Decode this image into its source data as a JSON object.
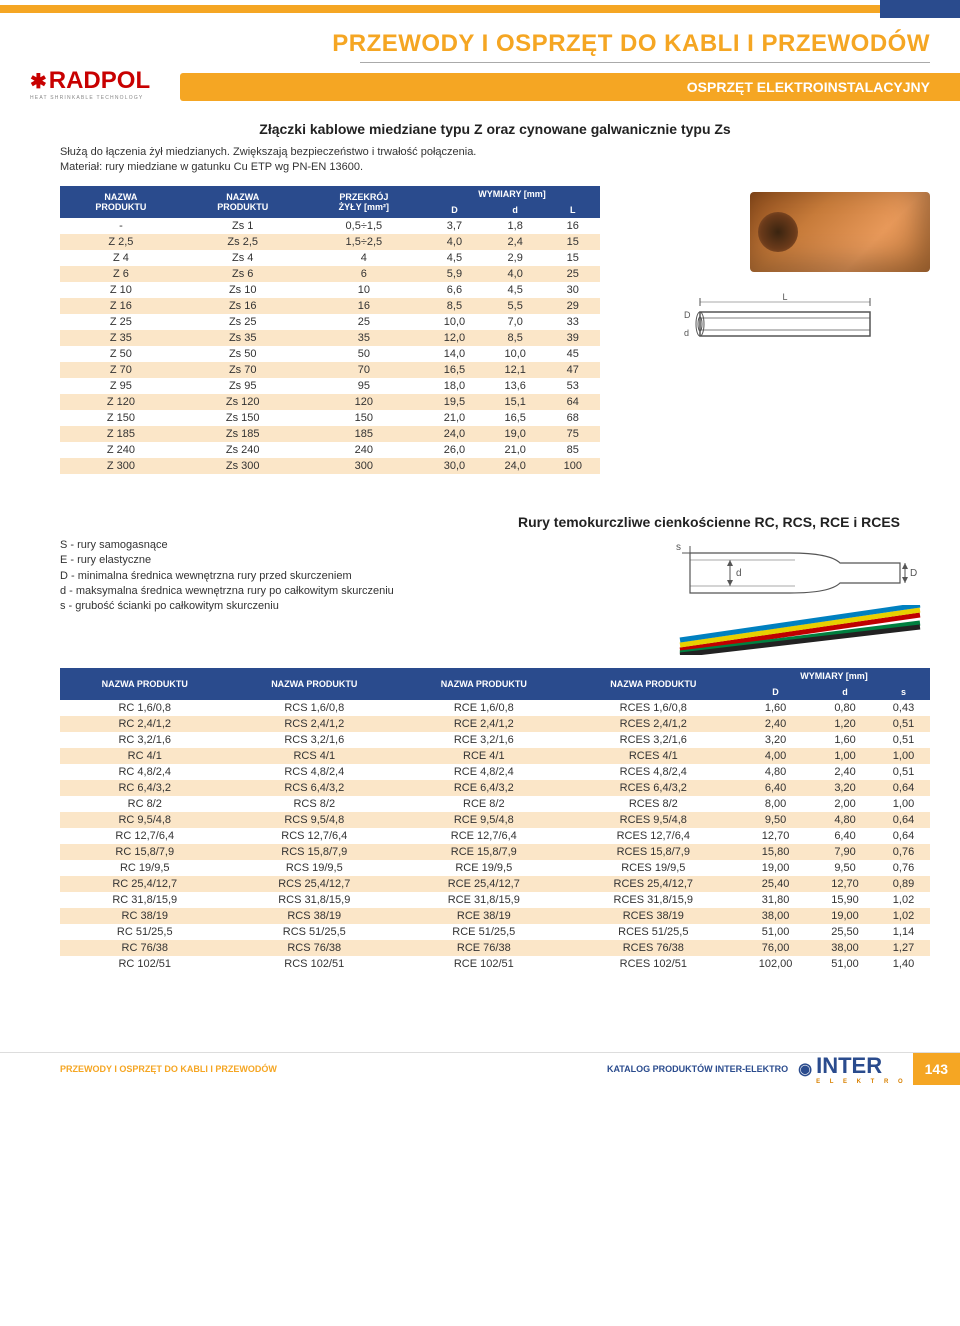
{
  "colors": {
    "brand_orange": "#f5a623",
    "brand_navy": "#2a4b8d",
    "row_alt_bg": "#fbe6c8",
    "text": "#333333",
    "logo_red": "#c80000"
  },
  "typography": {
    "body_font": "Arial",
    "title_size_pt": 18,
    "body_size_pt": 9,
    "table_size_pt": 8
  },
  "header": {
    "logo_text": "RADPOL",
    "logo_sub": "HEAT SHRINKABLE TECHNOLOGY",
    "page_title": "PRZEWODY I OSPRZĘT DO KABLI I PRZEWODÓW",
    "subtitle": "OSPRZĘT ELEKTROINSTALACYJNY"
  },
  "section1": {
    "title": "Złączki kablowe miedziane typu Z oraz cynowane galwanicznie typu Zs",
    "intro_line1": "Służą do łączenia żył miedzianych. Zwiększają bezpieczeństwo i trwałość połączenia.",
    "intro_line2": "Materiał: rury miedziane w gatunku Cu ETP wg PN-EN 13600.",
    "table": {
      "type": "table",
      "header_bg": "#2a4b8d",
      "header_fg": "#ffffff",
      "row_alt_bg": "#fbe6c8",
      "columns": [
        {
          "label1": "NAZWA",
          "label2": "PRODUKTU"
        },
        {
          "label1": "NAZWA",
          "label2": "PRODUKTU"
        },
        {
          "label1": "PRZEKRÓJ",
          "label2": "ŻYŁY [mm²]"
        },
        {
          "label1": "WYMIARY [mm]",
          "sub": [
            "D",
            "d",
            "L"
          ]
        }
      ],
      "rows": [
        [
          "-",
          "Zs 1",
          "0,5÷1,5",
          "3,7",
          "1,8",
          "16"
        ],
        [
          "Z 2,5",
          "Zs 2,5",
          "1,5÷2,5",
          "4,0",
          "2,4",
          "15"
        ],
        [
          "Z 4",
          "Zs 4",
          "4",
          "4,5",
          "2,9",
          "15"
        ],
        [
          "Z 6",
          "Zs 6",
          "6",
          "5,9",
          "4,0",
          "25"
        ],
        [
          "Z 10",
          "Zs 10",
          "10",
          "6,6",
          "4,5",
          "30"
        ],
        [
          "Z 16",
          "Zs 16",
          "16",
          "8,5",
          "5,5",
          "29"
        ],
        [
          "Z 25",
          "Zs 25",
          "25",
          "10,0",
          "7,0",
          "33"
        ],
        [
          "Z 35",
          "Zs 35",
          "35",
          "12,0",
          "8,5",
          "39"
        ],
        [
          "Z 50",
          "Zs 50",
          "50",
          "14,0",
          "10,0",
          "45"
        ],
        [
          "Z 70",
          "Zs 70",
          "70",
          "16,5",
          "12,1",
          "47"
        ],
        [
          "Z 95",
          "Zs 95",
          "95",
          "18,0",
          "13,6",
          "53"
        ],
        [
          "Z 120",
          "Zs 120",
          "120",
          "19,5",
          "15,1",
          "64"
        ],
        [
          "Z 150",
          "Zs 150",
          "150",
          "21,0",
          "16,5",
          "68"
        ],
        [
          "Z 185",
          "Zs 185",
          "185",
          "24,0",
          "19,0",
          "75"
        ],
        [
          "Z 240",
          "Zs 240",
          "240",
          "26,0",
          "21,0",
          "85"
        ],
        [
          "Z 300",
          "Zs 300",
          "300",
          "30,0",
          "24,0",
          "100"
        ]
      ]
    },
    "diagram": {
      "labels": [
        "L",
        "D",
        "d"
      ],
      "stroke": "#555555"
    }
  },
  "section2": {
    "title": "Rury temokurczliwe cienkościenne RC, RCS, RCE i RCES",
    "notes": [
      "S - rury samogasnące",
      "E - rury elastyczne",
      "D - minimalna średnica wewnętrzna rury przed skurczeniem",
      "d - maksymalna średnica wewnętrzna rury po całkowitym skurczeniu",
      "s - grubość ścianki po całkowitym skurczeniu"
    ],
    "diagram": {
      "labels": [
        "s",
        "d",
        "D"
      ],
      "stroke": "#555555"
    },
    "table": {
      "type": "table",
      "header_bg": "#2a4b8d",
      "header_fg": "#ffffff",
      "row_alt_bg": "#fbe6c8",
      "columns_top": [
        "NAZWA PRODUKTU",
        "NAZWA PRODUKTU",
        "NAZWA PRODUKTU",
        "NAZWA PRODUKTU",
        "WYMIARY [mm]"
      ],
      "columns_sub": [
        "D",
        "d",
        "s"
      ],
      "rows": [
        [
          "RC 1,6/0,8",
          "RCS 1,6/0,8",
          "RCE 1,6/0,8",
          "RCES 1,6/0,8",
          "1,60",
          "0,80",
          "0,43"
        ],
        [
          "RC 2,4/1,2",
          "RCS 2,4/1,2",
          "RCE 2,4/1,2",
          "RCES 2,4/1,2",
          "2,40",
          "1,20",
          "0,51"
        ],
        [
          "RC 3,2/1,6",
          "RCS 3,2/1,6",
          "RCE 3,2/1,6",
          "RCES 3,2/1,6",
          "3,20",
          "1,60",
          "0,51"
        ],
        [
          "RC 4/1",
          "RCS 4/1",
          "RCE 4/1",
          "RCES 4/1",
          "4,00",
          "1,00",
          "1,00"
        ],
        [
          "RC 4,8/2,4",
          "RCS 4,8/2,4",
          "RCE 4,8/2,4",
          "RCES 4,8/2,4",
          "4,80",
          "2,40",
          "0,51"
        ],
        [
          "RC 6,4/3,2",
          "RCS 6,4/3,2",
          "RCE 6,4/3,2",
          "RCES 6,4/3,2",
          "6,40",
          "3,20",
          "0,64"
        ],
        [
          "RC 8/2",
          "RCS 8/2",
          "RCE 8/2",
          "RCES 8/2",
          "8,00",
          "2,00",
          "1,00"
        ],
        [
          "RC 9,5/4,8",
          "RCS 9,5/4,8",
          "RCE 9,5/4,8",
          "RCES 9,5/4,8",
          "9,50",
          "4,80",
          "0,64"
        ],
        [
          "RC 12,7/6,4",
          "RCS 12,7/6,4",
          "RCE 12,7/6,4",
          "RCES 12,7/6,4",
          "12,70",
          "6,40",
          "0,64"
        ],
        [
          "RC 15,8/7,9",
          "RCS 15,8/7,9",
          "RCE 15,8/7,9",
          "RCES 15,8/7,9",
          "15,80",
          "7,90",
          "0,76"
        ],
        [
          "RC 19/9,5",
          "RCS 19/9,5",
          "RCE 19/9,5",
          "RCES 19/9,5",
          "19,00",
          "9,50",
          "0,76"
        ],
        [
          "RC 25,4/12,7",
          "RCS 25,4/12,7",
          "RCE 25,4/12,7",
          "RCES 25,4/12,7",
          "25,40",
          "12,70",
          "0,89"
        ],
        [
          "RC 31,8/15,9",
          "RCS 31,8/15,9",
          "RCE 31,8/15,9",
          "RCES 31,8/15,9",
          "31,80",
          "15,90",
          "1,02"
        ],
        [
          "RC 38/19",
          "RCS 38/19",
          "RCE 38/19",
          "RCES 38/19",
          "38,00",
          "19,00",
          "1,02"
        ],
        [
          "RC 51/25,5",
          "RCS 51/25,5",
          "RCE 51/25,5",
          "RCES 51/25,5",
          "51,00",
          "25,50",
          "1,14"
        ],
        [
          "RC 76/38",
          "RCS 76/38",
          "RCE 76/38",
          "RCES 76/38",
          "76,00",
          "38,00",
          "1,27"
        ],
        [
          "RC 102/51",
          "RCS 102/51",
          "RCE 102/51",
          "RCES 102/51",
          "102,00",
          "51,00",
          "1,40"
        ]
      ]
    }
  },
  "footer": {
    "left": "PRZEWODY I OSPRZĘT DO KABLI I PRZEWODÓW",
    "center": "KATALOG PRODUKTÓW INTER-ELEKTRO",
    "logo": "INTER",
    "logo_sub": "E L E K T R O",
    "page_number": "143"
  }
}
